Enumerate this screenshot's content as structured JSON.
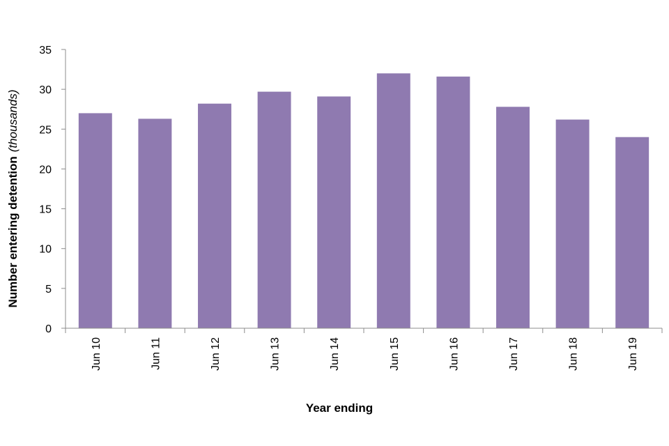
{
  "chart_data": {
    "type": "bar",
    "categories": [
      "Jun 10",
      "Jun 11",
      "Jun 12",
      "Jun 13",
      "Jun 14",
      "Jun 15",
      "Jun 16",
      "Jun 17",
      "Jun 18",
      "Jun 19"
    ],
    "values": [
      27.0,
      26.3,
      28.2,
      29.7,
      29.1,
      32.0,
      31.6,
      27.8,
      26.2,
      24.0
    ],
    "title": "",
    "xlabel": "Year ending",
    "ylabel": "Number entering detention",
    "ylabel_unit": "(thousands)",
    "ylim": [
      0,
      35
    ],
    "yticks": [
      0,
      5,
      10,
      15,
      20,
      25,
      30,
      35
    ],
    "grid": false,
    "bar_color": "#8f7ab0",
    "axis_color": "#8c8c8c"
  }
}
